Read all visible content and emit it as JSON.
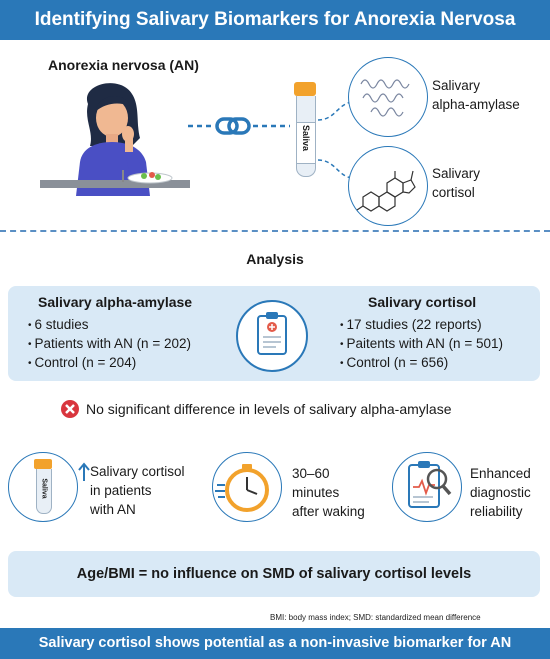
{
  "header": {
    "title": "Identifying Salivary Biomarkers for Anorexia Nervosa"
  },
  "top": {
    "an_title": "Anorexia nervosa (AN)",
    "tube_label": "Saliva",
    "biomarker1": [
      "Salivary",
      "alpha-amylase"
    ],
    "biomarker2": [
      "Salivary",
      "cortisol"
    ],
    "icons": [
      "woman-eating-icon",
      "link-icon",
      "saliva-tube-icon",
      "alpha-amylase-protein-icon",
      "cortisol-molecule-icon"
    ]
  },
  "analysis": {
    "title": "Analysis",
    "left": {
      "title": "Salivary alpha-amylase",
      "items": [
        "6 studies",
        "Patients with AN (n = 202)",
        "Control (n = 204)"
      ]
    },
    "right": {
      "title": "Salivary cortisol",
      "items": [
        "17 studies (22 reports)",
        "Paitents with AN (n = 501)",
        "Control (n = 656)"
      ]
    }
  },
  "result": {
    "text": "No significant difference in levels of salivary alpha-amylase"
  },
  "findings": {
    "f1": [
      "Salivary cortisol",
      "in patients",
      "with AN"
    ],
    "f2": [
      "30–60",
      "minutes",
      "after waking"
    ],
    "f3": [
      "Enhanced",
      "diagnostic",
      "reliability"
    ],
    "tube_label": "Saliva"
  },
  "bottom": {
    "conclusion": "Age/BMI = no influence on SMD of salivary cortisol levels",
    "abbrev": "BMI: body mass index; SMD: standardized mean difference"
  },
  "footer": {
    "text": "Salivary cortisol shows potential as a non-invasive biomarker for AN"
  },
  "colors": {
    "brand_blue": "#2a78b8",
    "panel_blue": "#d9e9f6",
    "x_red": "#d9363e",
    "tube_cap": "#f2a22c"
  }
}
